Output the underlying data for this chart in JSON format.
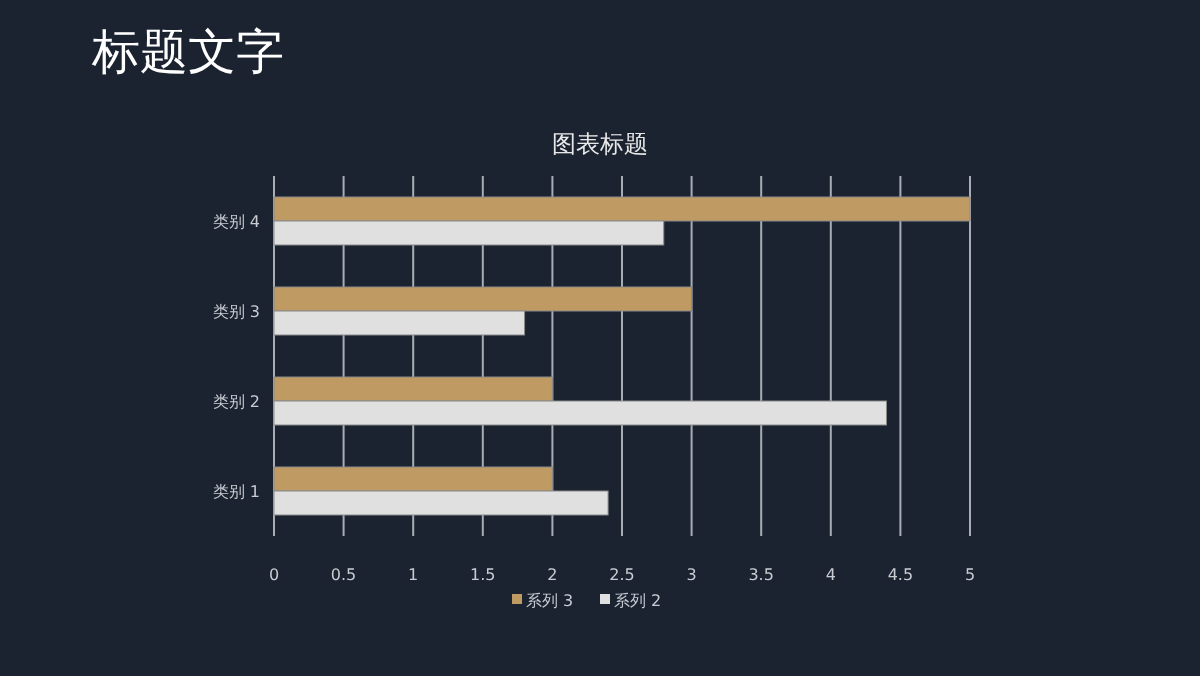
{
  "chart_data": {
    "type": "bar",
    "orientation": "horizontal",
    "title": "标题文字",
    "subtitle": "图表标题",
    "categories": [
      "类别 4",
      "类别 3",
      "类别 2",
      "类别 1"
    ],
    "series": [
      {
        "name": "系列 3",
        "color": "#c09a63",
        "values": [
          5,
          3,
          2,
          2
        ]
      },
      {
        "name": "系列 2",
        "color": "#e0e0e0",
        "values": [
          2.8,
          1.8,
          4.4,
          2.4
        ]
      }
    ],
    "xlim": [
      0,
      5
    ],
    "xticks": [
      0,
      0.5,
      1,
      1.5,
      2,
      2.5,
      3,
      3.5,
      4,
      4.5,
      5
    ],
    "grid": "x",
    "legend": "bottom"
  }
}
